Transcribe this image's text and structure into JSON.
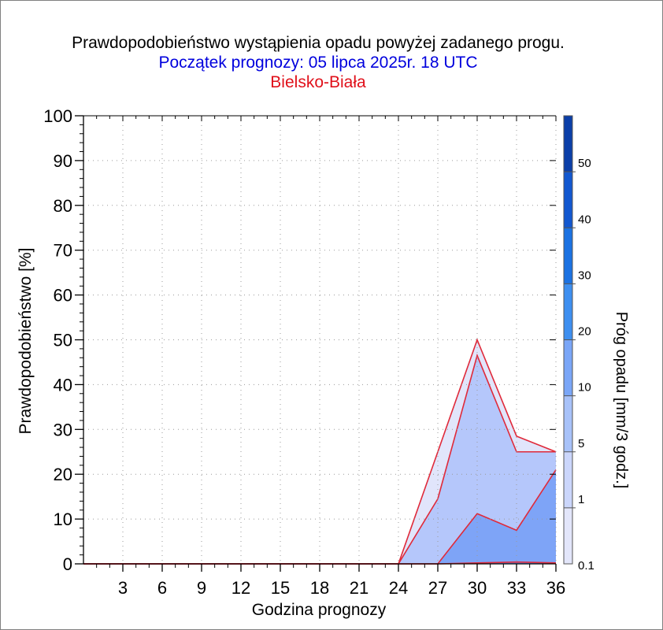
{
  "chart_data": {
    "type": "area",
    "title": "Prawdopodobieństwo wystąpienia opadu powyżej zadanego progu.",
    "subtitle": "Początek prognozy: 05 lipca 2025r. 18 UTC",
    "location": "Bielsko-Biała",
    "xlabel": "Godzina prognozy",
    "ylabel": "Prawdopodobieństwo [%]",
    "colorbar_label": "Próg opadu [mm/3 godz.]",
    "xlim": [
      0,
      36
    ],
    "ylim": [
      0,
      100
    ],
    "x_ticks": [
      "3",
      "6",
      "9",
      "12",
      "15",
      "18",
      "21",
      "24",
      "27",
      "30",
      "33",
      "36"
    ],
    "y_ticks": [
      "0",
      "10",
      "20",
      "30",
      "40",
      "50",
      "60",
      "70",
      "80",
      "90",
      "100"
    ],
    "grid": true,
    "x": [
      0,
      3,
      6,
      9,
      12,
      15,
      18,
      21,
      24,
      27,
      30,
      33,
      36
    ],
    "series": [
      {
        "name": "0.1",
        "color": "#e1e5fb",
        "values": [
          0,
          0,
          0,
          0,
          0,
          0,
          0,
          0,
          0,
          25,
          50,
          28.5,
          25
        ]
      },
      {
        "name": "1",
        "color": "#b5c7fb",
        "values": [
          0,
          0,
          0,
          0,
          0,
          0,
          0,
          0,
          0,
          14.5,
          46.5,
          25,
          25
        ]
      },
      {
        "name": "5",
        "color": "#7ea4f7",
        "values": [
          0,
          0,
          0,
          0,
          0,
          0,
          0,
          0,
          0,
          0,
          11.2,
          7.5,
          21
        ]
      },
      {
        "name": "10",
        "color": "#5b8ff1",
        "values": [
          0,
          0,
          0,
          0,
          0,
          0,
          0,
          0,
          0,
          0,
          0.2,
          0.4,
          0.2
        ]
      }
    ],
    "colorbar": {
      "labels": [
        "0.1",
        "1",
        "5",
        "10",
        "20",
        "30",
        "40",
        "50"
      ],
      "colors": [
        "#e3e6fa",
        "#cbd6fb",
        "#a8c2f9",
        "#7aa6f7",
        "#3e8ff0",
        "#1c72e2",
        "#1258d0",
        "#0b3fa8"
      ]
    },
    "outline_color": "#e02a3a"
  }
}
